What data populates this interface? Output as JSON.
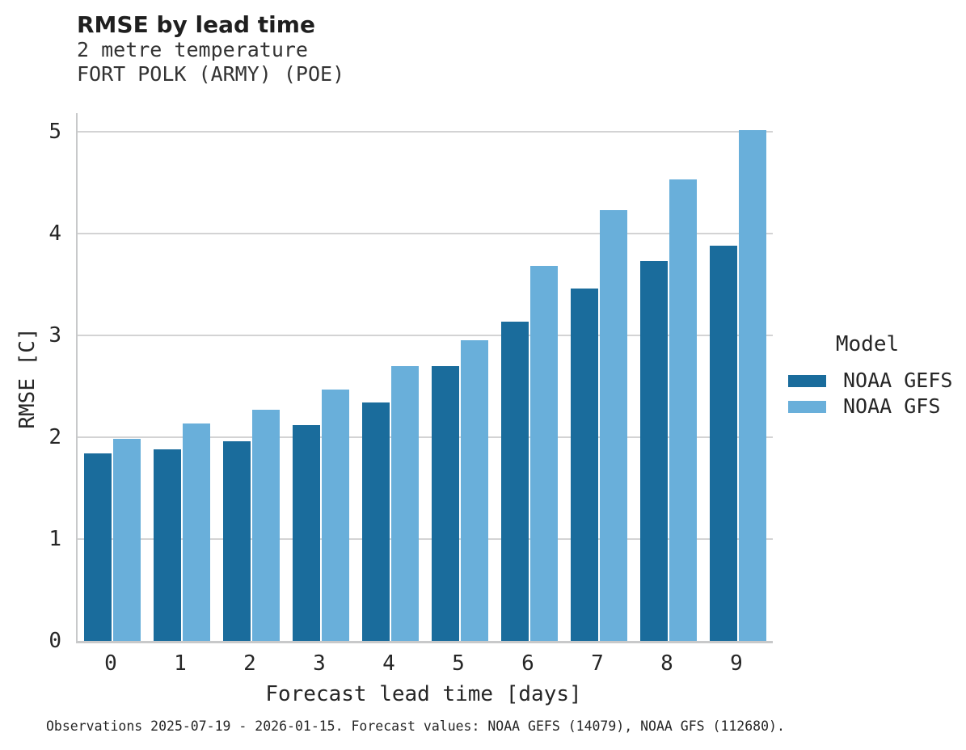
{
  "footer": {
    "caption": "Observations 2025-07-19 - 2026-01-15. Forecast values: NOAA GEFS (14079), NOAA GFS (112680)."
  },
  "chart_data": {
    "type": "bar",
    "title": "RMSE by lead time",
    "subtitle": [
      "2 metre temperature",
      "FORT POLK (ARMY) (POE)"
    ],
    "xlabel": "Forecast lead time [days]",
    "ylabel": "RMSE [C]",
    "categories": [
      "0",
      "1",
      "2",
      "3",
      "4",
      "5",
      "6",
      "7",
      "8",
      "9"
    ],
    "series": [
      {
        "name": "NOAA GEFS",
        "color": "#1a6c9c",
        "values": [
          1.84,
          1.88,
          1.96,
          2.12,
          2.34,
          2.7,
          3.13,
          3.46,
          3.73,
          3.88
        ]
      },
      {
        "name": "NOAA GFS",
        "color": "#69afda",
        "values": [
          1.98,
          2.13,
          2.27,
          2.47,
          2.7,
          2.95,
          3.68,
          4.23,
          4.53,
          5.01
        ]
      }
    ],
    "ylim": [
      0,
      5.18
    ],
    "yticks": [
      0,
      1,
      2,
      3,
      4,
      5
    ],
    "legend_title": "Model",
    "legend_position": "right",
    "grid": "horizontal",
    "grid_color": "#d3d3d4",
    "spine_color": "#c8c9ca",
    "text_color": "#262626"
  }
}
